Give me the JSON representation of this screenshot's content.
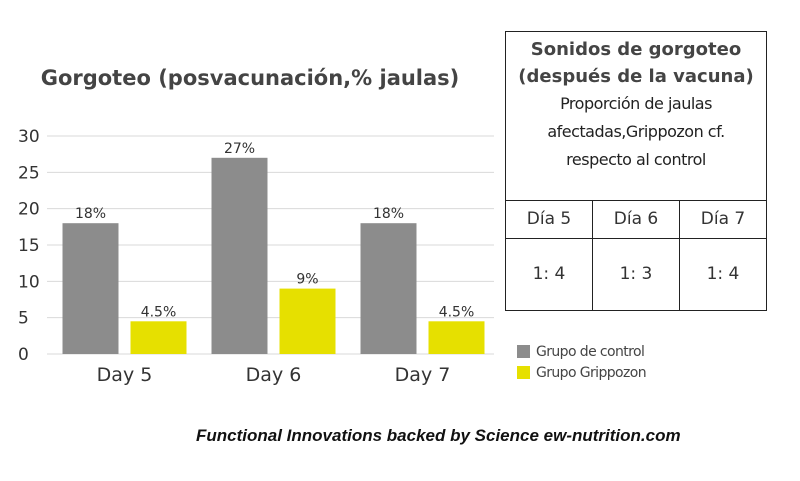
{
  "chart_data": {
    "type": "bar",
    "title": "Gorgoteo (posvacunación,% jaulas)",
    "xlabel": "",
    "ylabel": "",
    "categories": [
      "Day 5",
      "Day 6",
      "Day 7"
    ],
    "series": [
      {
        "name": "Grupo de control",
        "values": [
          18,
          27,
          18
        ],
        "labels": [
          "18%",
          "27%",
          "18%"
        ],
        "color": "#8c8c8c"
      },
      {
        "name": "Grupo Grippozon",
        "values": [
          4.5,
          9,
          4.5
        ],
        "labels": [
          "4.5%",
          "9%",
          "4.5%"
        ],
        "color": "#e6e000"
      }
    ],
    "ylim": [
      0,
      30
    ],
    "yticks": [
      "0",
      "5",
      "10",
      "15",
      "20",
      "25",
      "30"
    ],
    "grid": true,
    "legend": "bottom-right"
  },
  "table": {
    "heading": "Sonidos de gorgoteo (después de la vacuna)",
    "description": "Proporción de jaulas afectadas,Grippozon cf. respecto al control",
    "days": [
      "Día 5",
      "Día 6",
      "Día 7"
    ],
    "ratios": [
      "1: 4",
      "1: 3",
      "1: 4"
    ]
  },
  "footer": {
    "credit": "Functional Innovations backed by Science ew-nutrition.com"
  }
}
